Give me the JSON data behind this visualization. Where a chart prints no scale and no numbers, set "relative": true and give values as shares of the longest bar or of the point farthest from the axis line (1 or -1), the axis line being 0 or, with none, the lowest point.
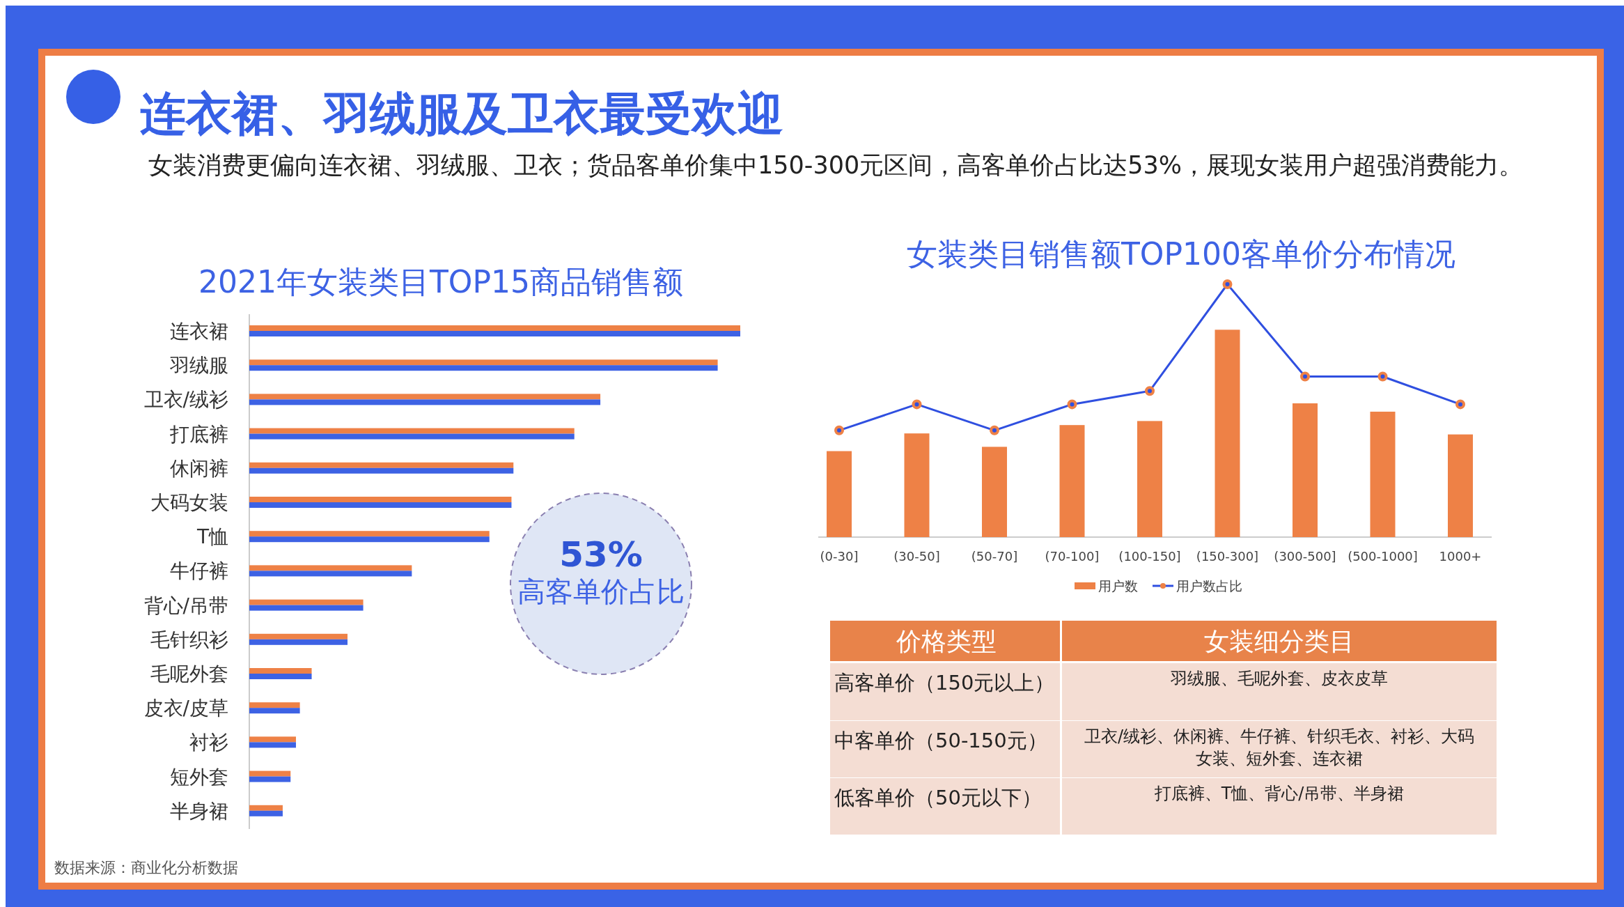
{
  "chart_data": [
    {
      "type": "other",
      "title": "连衣裙、羽绒服及卫衣最受欢迎",
      "subtitle": "女装消费更偏向连衣裙、羽绒服、卫衣；货品客单价集中150-300元区间，高客单价占比达53%，展现女装用户超强消费能力。",
      "annotations": [
        "数据来源：商业化分析数据"
      ]
    },
    {
      "type": "bar",
      "orientation": "horizontal",
      "relative": true,
      "title": "2021年女装类目TOP15商品销售额",
      "categories": [
        "连衣裙",
        "羽绒服",
        "卫衣/绒衫",
        "打底裤",
        "休闲裤",
        "大码女装",
        "T恤",
        "牛仔裤",
        "背心/吊带",
        "毛针织衫",
        "毛呢外套",
        "皮衣/皮草",
        "衬衫",
        "短外套",
        "半身裙"
      ],
      "series": [
        {
          "color": "#ee8146",
          "values": [
            1,
            0.954,
            0.715,
            0.662,
            0.538,
            0.534,
            0.489,
            0.331,
            0.232,
            0.2,
            0.127,
            0.103,
            0.095,
            0.084,
            0.068
          ]
        },
        {
          "color": "#3d62e4",
          "values": [
            1,
            0.954,
            0.715,
            0.662,
            0.538,
            0.534,
            0.489,
            0.331,
            0.232,
            0.2,
            0.127,
            0.103,
            0.095,
            0.084,
            0.068
          ]
        }
      ],
      "annotations": [
        "53%",
        "高客单价占比"
      ]
    },
    {
      "type": "bar",
      "relative": true,
      "title": "女装类目销售额TOP100客单价分布情况",
      "categories": [
        "(0-30]",
        "(30-50]",
        "(50-70]",
        "(70-100]",
        "(100-150]",
        "(150-300]",
        "(300-500]",
        "(500-1000]",
        "1000+"
      ],
      "legend": "bottom",
      "marker": "circle",
      "series": [
        {
          "name": "用户数",
          "type": "bar",
          "color": "#ee8146",
          "values": [
            0.34,
            0.41,
            0.357,
            0.443,
            0.459,
            0.82,
            0.529,
            0.496,
            0.406
          ]
        },
        {
          "name": "用户数占比",
          "type": "line",
          "color": "#2f4fe0",
          "values": [
            0.422,
            0.525,
            0.422,
            0.525,
            0.578,
            1,
            0.635,
            0.635,
            0.525
          ]
        }
      ]
    },
    {
      "type": "other",
      "annotations": [
        "价格类型",
        "女装细分类目",
        "高客单价（150元以上）",
        "羽绒服、毛呢外套、皮衣皮草",
        "中客单价（50-150元）",
        "卫衣/绒衫、休闲裤、牛仔裤、针织毛衣、衬衫、大码女装、短外套、连衣裙",
        "低客单价（50元以下）",
        "打底裤、T恤、背心/吊带、半身裙"
      ]
    }
  ]
}
